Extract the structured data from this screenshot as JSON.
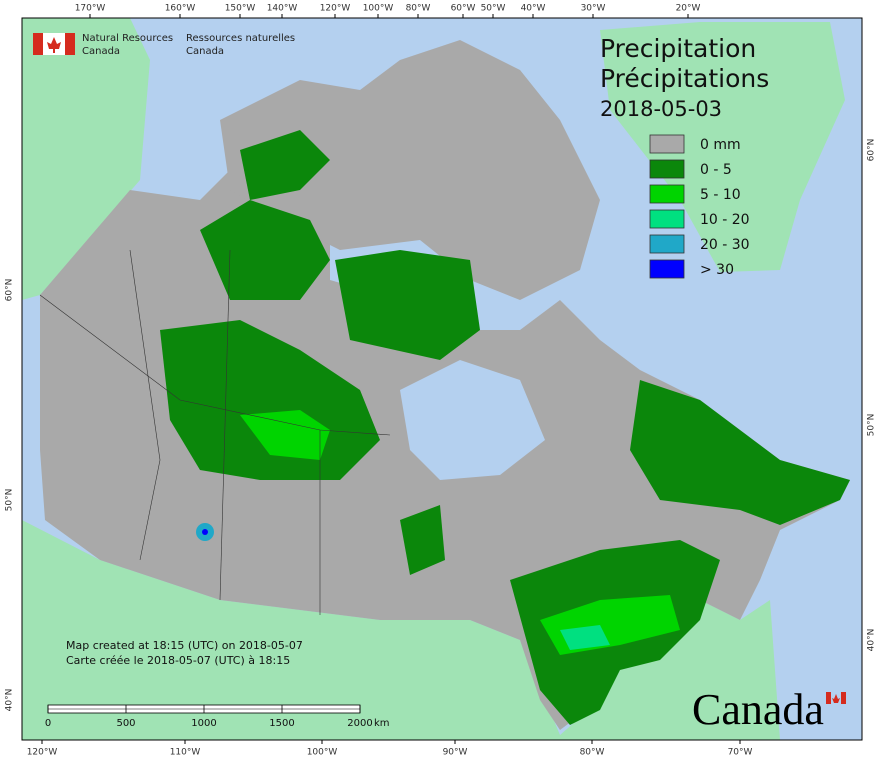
{
  "header": {
    "org_en": [
      "Natural Resources",
      "Canada"
    ],
    "org_fr": [
      "Ressources naturelles",
      "Canada"
    ]
  },
  "title": [
    "Precipitation",
    "Précipitations"
  ],
  "date": "2018-05-03",
  "legend": [
    {
      "label": "0 mm",
      "color": "#a9a9a9"
    },
    {
      "label": "0 - 5",
      "color": "#0b870b"
    },
    {
      "label": "5 - 10",
      "color": "#00d400"
    },
    {
      "label": "10 - 20",
      "color": "#00e080"
    },
    {
      "label": "20 - 30",
      "color": "#20a8c8"
    },
    {
      "label": "> 30",
      "color": "#0000ff"
    }
  ],
  "notes": [
    "Map created at 18:15 (UTC) on 2018-05-07",
    "Carte créée le 2018-05-07 (UTC) à 18:15"
  ],
  "scale_bar": {
    "ticks": [
      0,
      500,
      1000,
      1500,
      2000
    ],
    "unit": "km"
  },
  "wordmark": "Canada",
  "graticule": {
    "top": [
      "170°W",
      "160°W",
      "150°W",
      "140°W",
      "120°W",
      "100°W",
      "80°W",
      "60°W",
      "50°W",
      "40°W",
      "30°W",
      "20°W"
    ],
    "bottom": [
      "120°W",
      "110°W",
      "100°W",
      "90°W",
      "80°W",
      "70°W"
    ],
    "left": [
      "60°N",
      "50°N",
      "40°N"
    ],
    "right": [
      "60°N",
      "50°N",
      "40°N"
    ]
  }
}
